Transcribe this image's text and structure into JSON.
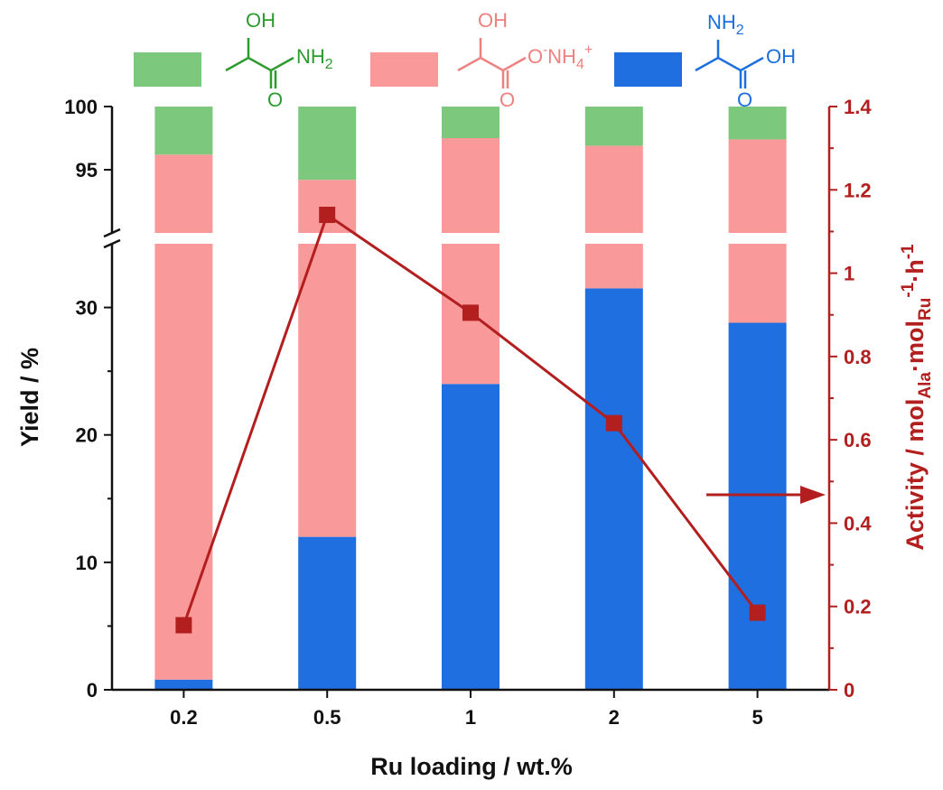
{
  "colors": {
    "amide": "#7cc87c",
    "salt": "#fa9999",
    "alanine": "#1f6fe0",
    "activity": "#b31e1e",
    "axis": "#111111",
    "amide_text": "#2e9b2e",
    "salt_text": "#ef8080",
    "alanine_text": "#1d6fe0"
  },
  "legend": {
    "amide": {
      "oh": "OH",
      "nh2": "NH2"
    },
    "salt": {
      "oh": "OH",
      "o_minus": "O",
      "minus": "-",
      "nh4": "NH4",
      "plus": "+"
    },
    "alanine": {
      "nh2": "NH2",
      "oh": "OH"
    }
  },
  "chart_data": {
    "type": "bar",
    "stacked": true,
    "categories": [
      "0.2",
      "0.5",
      "1",
      "2",
      "5"
    ],
    "xlabel": "Ru loading / wt.%",
    "ylabel": "Yield / %",
    "y2label": {
      "main": "Activity / mol",
      "sub1": "Ala",
      "mid": "·mol",
      "sub2": "Ru",
      "sup1": "-1",
      "mid2": "·h",
      "sup2": "-1"
    },
    "y_axis_break": {
      "lower_range": [
        0,
        35
      ],
      "upper_range": [
        90,
        100
      ]
    },
    "y_ticks_lower": [
      "0",
      "10",
      "20",
      "30"
    ],
    "y_ticks_upper": [
      "95",
      "100"
    ],
    "ylim2": [
      0,
      1.4
    ],
    "y2_ticks": [
      "0",
      "0.2",
      "0.4",
      "0.6",
      "0.8",
      "1",
      "1.2",
      "1.4"
    ],
    "series": [
      {
        "key": "alanine",
        "values": [
          0.8,
          12,
          24,
          31.5,
          28.8
        ]
      },
      {
        "key": "salt",
        "values": [
          95.4,
          82.2,
          73.5,
          65.4,
          68.6
        ]
      },
      {
        "key": "amide",
        "values": [
          3.8,
          5.8,
          2.5,
          3.3,
          2.6
        ]
      }
    ],
    "line_series": {
      "axis": "right",
      "values": [
        0.155,
        1.14,
        0.905,
        0.64,
        0.185
      ]
    },
    "annotation": "arrow pointing to right axis"
  }
}
